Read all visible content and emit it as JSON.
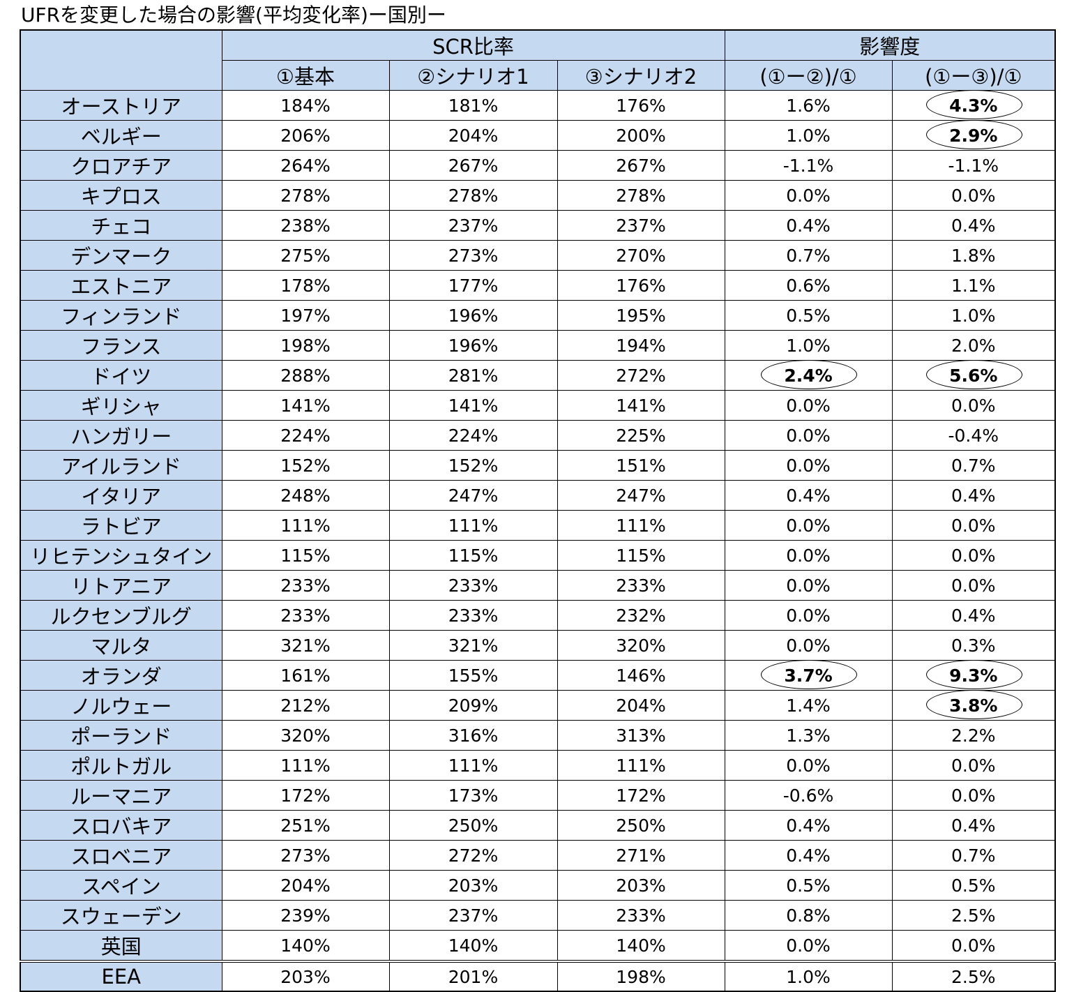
{
  "title": "UFRを変更した場合の影響(平均変化率)ー国別ー",
  "table": {
    "group_headers": [
      "SCR比率",
      "影響度"
    ],
    "columns": [
      "①基本",
      "②シナリオ1",
      "③シナリオ2",
      "(①ー②)/①",
      "(①ー③)/①"
    ],
    "rows": [
      [
        "オーストリア",
        "184%",
        "181%",
        "176%",
        "1.6%",
        "4.3%"
      ],
      [
        "ベルギー",
        "206%",
        "204%",
        "200%",
        "1.0%",
        "2.9%"
      ],
      [
        "クロアチア",
        "264%",
        "267%",
        "267%",
        "-1.1%",
        "-1.1%"
      ],
      [
        "キプロス",
        "278%",
        "278%",
        "278%",
        "0.0%",
        "0.0%"
      ],
      [
        "チェコ",
        "238%",
        "237%",
        "237%",
        "0.4%",
        "0.4%"
      ],
      [
        "デンマーク",
        "275%",
        "273%",
        "270%",
        "0.7%",
        "1.8%"
      ],
      [
        "エストニア",
        "178%",
        "177%",
        "176%",
        "0.6%",
        "1.1%"
      ],
      [
        "フィンランド",
        "197%",
        "196%",
        "195%",
        "0.5%",
        "1.0%"
      ],
      [
        "フランス",
        "198%",
        "196%",
        "194%",
        "1.0%",
        "2.0%"
      ],
      [
        "ドイツ",
        "288%",
        "281%",
        "272%",
        "2.4%",
        "5.6%"
      ],
      [
        "ギリシャ",
        "141%",
        "141%",
        "141%",
        "0.0%",
        "0.0%"
      ],
      [
        "ハンガリー",
        "224%",
        "224%",
        "225%",
        "0.0%",
        "-0.4%"
      ],
      [
        "アイルランド",
        "152%",
        "152%",
        "151%",
        "0.0%",
        "0.7%"
      ],
      [
        "イタリア",
        "248%",
        "247%",
        "247%",
        "0.4%",
        "0.4%"
      ],
      [
        "ラトビア",
        "111%",
        "111%",
        "111%",
        "0.0%",
        "0.0%"
      ],
      [
        "リヒテンシュタイン",
        "115%",
        "115%",
        "115%",
        "0.0%",
        "0.0%"
      ],
      [
        "リトアニア",
        "233%",
        "233%",
        "233%",
        "0.0%",
        "0.0%"
      ],
      [
        "ルクセンブルグ",
        "233%",
        "233%",
        "232%",
        "0.0%",
        "0.4%"
      ],
      [
        "マルタ",
        "321%",
        "321%",
        "320%",
        "0.0%",
        "0.3%"
      ],
      [
        "オランダ",
        "161%",
        "155%",
        "146%",
        "3.7%",
        "9.3%"
      ],
      [
        "ノルウェー",
        "212%",
        "209%",
        "204%",
        "1.4%",
        "3.8%"
      ],
      [
        "ポーランド",
        "320%",
        "316%",
        "313%",
        "1.3%",
        "2.2%"
      ],
      [
        "ポルトガル",
        "111%",
        "111%",
        "111%",
        "0.0%",
        "0.0%"
      ],
      [
        "ルーマニア",
        "172%",
        "173%",
        "172%",
        "-0.6%",
        "0.0%"
      ],
      [
        "スロバキア",
        "251%",
        "250%",
        "250%",
        "0.4%",
        "0.4%"
      ],
      [
        "スロベニア",
        "273%",
        "272%",
        "271%",
        "0.4%",
        "0.7%"
      ],
      [
        "スペイン",
        "204%",
        "203%",
        "203%",
        "0.5%",
        "0.5%"
      ],
      [
        "スウェーデン",
        "239%",
        "237%",
        "233%",
        "0.8%",
        "2.5%"
      ],
      [
        "英国",
        "140%",
        "140%",
        "140%",
        "0.0%",
        "0.0%"
      ]
    ],
    "total_row": [
      "EEA",
      "203%",
      "201%",
      "198%",
      "1.0%",
      "2.5%"
    ]
  }
}
